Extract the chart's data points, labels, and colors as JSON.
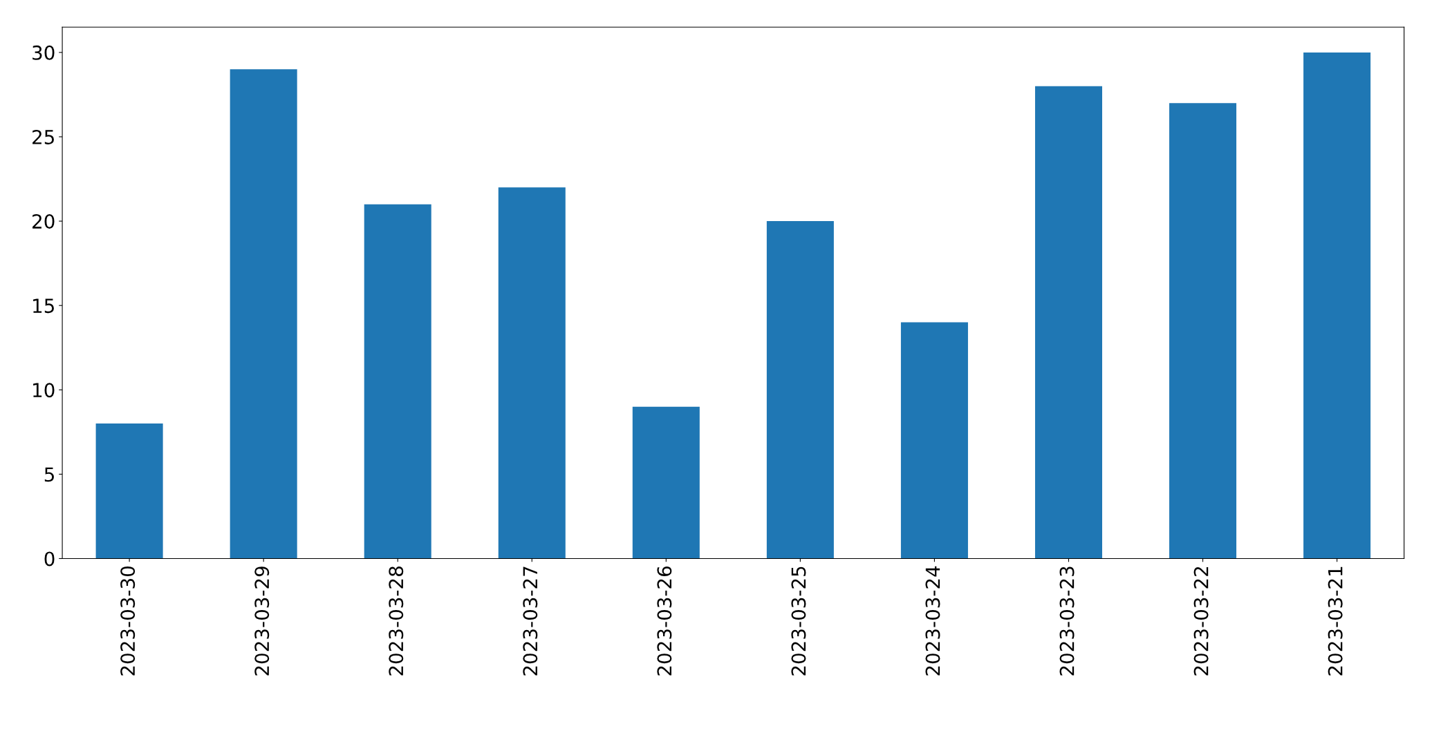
{
  "chart_data": {
    "type": "bar",
    "categories": [
      "2023-03-30",
      "2023-03-29",
      "2023-03-28",
      "2023-03-27",
      "2023-03-26",
      "2023-03-25",
      "2023-03-24",
      "2023-03-23",
      "2023-03-22",
      "2023-03-21"
    ],
    "values": [
      8,
      29,
      21,
      22,
      9,
      20,
      14,
      28,
      27,
      30
    ],
    "color": "#1f77b4",
    "ylim": [
      0,
      31.5
    ],
    "yticks": [
      0,
      5,
      10,
      15,
      20,
      25,
      30
    ],
    "grid": false,
    "legend": false
  }
}
